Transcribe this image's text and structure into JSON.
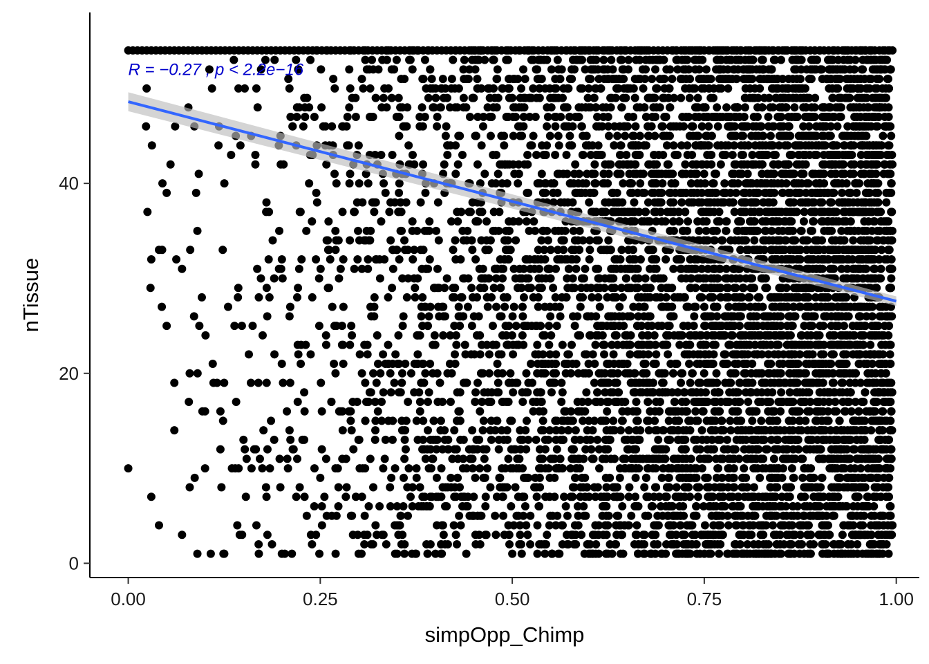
{
  "chart_data": {
    "type": "scatter",
    "title": "",
    "xlabel": "simpOpp_Chimp",
    "ylabel": "nTissue",
    "xlim": [
      -0.05,
      1.03
    ],
    "ylim": [
      -1.5,
      58
    ],
    "x_ticks": [
      0.0,
      0.25,
      0.5,
      0.75,
      1.0
    ],
    "x_tick_labels": [
      "0.00",
      "0.25",
      "0.50",
      "0.75",
      "1.00"
    ],
    "y_ticks": [
      0,
      20,
      40
    ],
    "y_tick_labels": [
      "0",
      "20",
      "40"
    ],
    "grid": false,
    "legend": "none",
    "annotation": {
      "text": "R = −0.27 , p < 2.2e−16",
      "x": 0.0,
      "y": 52,
      "color": "#0000cc"
    },
    "regression": {
      "x": [
        0.0,
        1.0
      ],
      "y": [
        48.6,
        27.6
      ],
      "color": "#3366ff",
      "band_color": "#bdbdbd",
      "band_halfwidth": [
        1.0,
        0.5
      ]
    },
    "point_color": "#000000",
    "series": [
      {
        "x": [
          0.0,
          0.03,
          0.04,
          0.05,
          0.06,
          0.06,
          0.07,
          0.09,
          0.1,
          0.11,
          0.12,
          0.125,
          0.135,
          0.15,
          0.17,
          0.18,
          0.19,
          0.2,
          0.21,
          0.22,
          0.25,
          0.27,
          0.29,
          0.3,
          0.31,
          0.33,
          0.35,
          0.36,
          0.38,
          0.4,
          0.41,
          0.42,
          0.45,
          0.47,
          0.48,
          0.5,
          0.52,
          0.53,
          0.55,
          0.56,
          0.58,
          0.6,
          0.63,
          0.65,
          0.68,
          0.7,
          0.72,
          0.74,
          0.77,
          0.8,
          0.83,
          0.85,
          0.88,
          0.9,
          0.93,
          0.95,
          0.97,
          0.99,
          0.025,
          0.05,
          0.08,
          0.12,
          0.16,
          0.22,
          0.28,
          0.35,
          0.43,
          0.5,
          0.58,
          0.66,
          0.75,
          0.83,
          0.91,
          0.98,
          0.03,
          0.07,
          0.13,
          0.19,
          0.24,
          0.32,
          0.39,
          0.46,
          0.54,
          0.62,
          0.7,
          0.79,
          0.87,
          0.95,
          0.04,
          0.09,
          0.14,
          0.21,
          0.26,
          0.34,
          0.41,
          0.49,
          0.57,
          0.64,
          0.72,
          0.81,
          0.89,
          0.97,
          0.055,
          0.1,
          0.17,
          0.23,
          0.3,
          0.37,
          0.44,
          0.52,
          0.6,
          0.68,
          0.77,
          0.85,
          0.93,
          0.99
        ],
        "y": [
          10,
          7,
          4,
          25,
          19,
          14,
          3,
          1,
          10,
          21,
          16,
          1,
          10,
          13,
          1,
          7,
          13,
          1,
          14,
          11,
          9,
          1,
          5,
          1,
          17,
          15,
          4,
          13,
          16,
          1,
          24,
          9,
          5,
          20,
          7,
          1,
          18,
          9,
          11,
          1,
          12,
          7,
          1,
          16,
          1,
          6,
          20,
          2,
          16,
          5,
          24,
          1,
          8,
          14,
          3,
          22,
          11,
          1,
          37,
          39,
          20,
          12,
          45,
          28,
          21,
          33,
          16,
          49,
          40,
          32,
          27,
          44,
          36,
          31,
          32,
          31,
          27,
          30,
          43,
          38,
          25,
          44,
          35,
          29,
          41,
          34,
          29,
          38,
          33,
          35,
          45,
          26,
          29,
          37,
          41,
          34,
          28,
          46,
          39,
          30,
          45,
          40,
          42,
          16,
          28,
          48,
          44,
          36,
          48,
          42,
          38,
          29,
          36,
          46,
          32,
          48
        ]
      }
    ]
  }
}
